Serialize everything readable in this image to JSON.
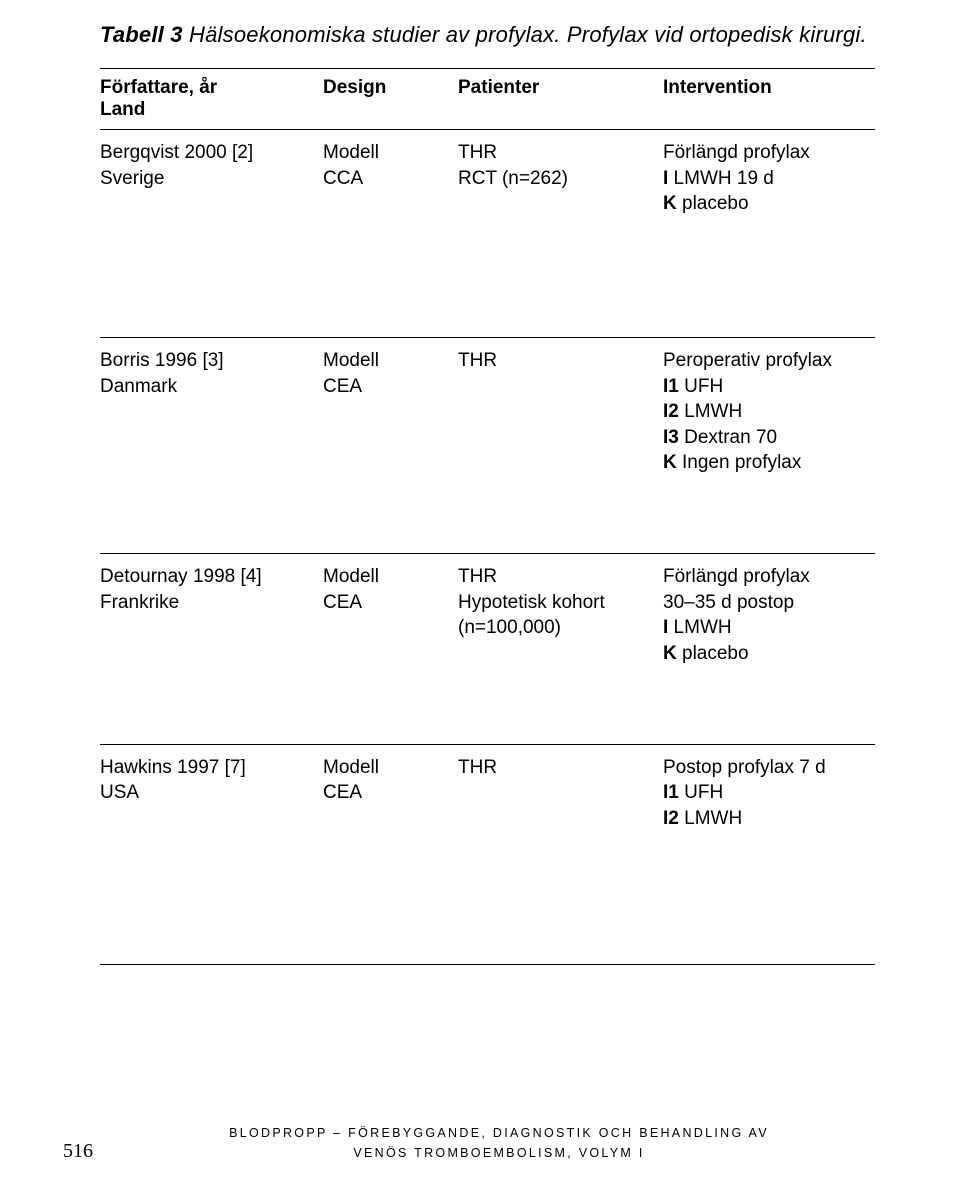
{
  "title": {
    "label": "Tabell 3",
    "text": "Hälsoekonomiska studier av profylax. Profylax vid ortopedisk kirurgi."
  },
  "headers": {
    "col1a": "Författare, år",
    "col1b": "Land",
    "col2": "Design",
    "col3": "Patienter",
    "col4": "Intervention"
  },
  "rows": [
    {
      "c1a": "Bergqvist 2000 [2]",
      "c1b": "Sverige",
      "c2a": "Modell",
      "c2b": "CCA",
      "c3a": "THR",
      "c3b": "RCT (n=262)",
      "c4a": "Förlängd profylax",
      "c4b_bold": "I",
      "c4b_rest": " LMWH 19 d",
      "c4c_bold": "K",
      "c4c_rest": " placebo",
      "c4d_bold": "",
      "c4d_rest": "",
      "c4e_bold": "",
      "c4e_rest": ""
    },
    {
      "c1a": "Borris 1996 [3]",
      "c1b": "Danmark",
      "c2a": "Modell",
      "c2b": "CEA",
      "c3a": "THR",
      "c3b": "",
      "c4a": "Peroperativ profylax",
      "c4b_bold": "I1",
      "c4b_rest": " UFH",
      "c4c_bold": "I2",
      "c4c_rest": " LMWH",
      "c4d_bold": "I3",
      "c4d_rest": " Dextran 70",
      "c4e_bold": "K",
      "c4e_rest": " Ingen profylax"
    },
    {
      "c1a": "Detournay 1998 [4]",
      "c1b": "Frankrike",
      "c2a": "Modell",
      "c2b": "CEA",
      "c3a": "THR",
      "c3b": "Hypotetisk kohort",
      "c3c": "(n=100,000)",
      "c4a": "Förlängd profylax",
      "c4b_bold": "",
      "c4b_rest": "30–35 d postop",
      "c4c_bold": "I",
      "c4c_rest": " LMWH",
      "c4d_bold": "K",
      "c4d_rest": " placebo",
      "c4e_bold": "",
      "c4e_rest": ""
    },
    {
      "c1a": "Hawkins 1997 [7]",
      "c1b": "USA",
      "c2a": "Modell",
      "c2b": "CEA",
      "c3a": "THR",
      "c3b": "",
      "c4a": "Postop profylax 7 d",
      "c4b_bold": "I1",
      "c4b_rest": " UFH",
      "c4c_bold": "I2",
      "c4c_rest": " LMWH",
      "c4d_bold": "",
      "c4d_rest": "",
      "c4e_bold": "",
      "c4e_rest": ""
    }
  ],
  "footer": {
    "page": "516",
    "line1": "BLODPROPP – FÖREBYGGANDE, DIAGNOSTIK OCH BEHANDLING AV",
    "line2": "VENÖS TROMBOEMBOLISM, VOLYM I"
  }
}
